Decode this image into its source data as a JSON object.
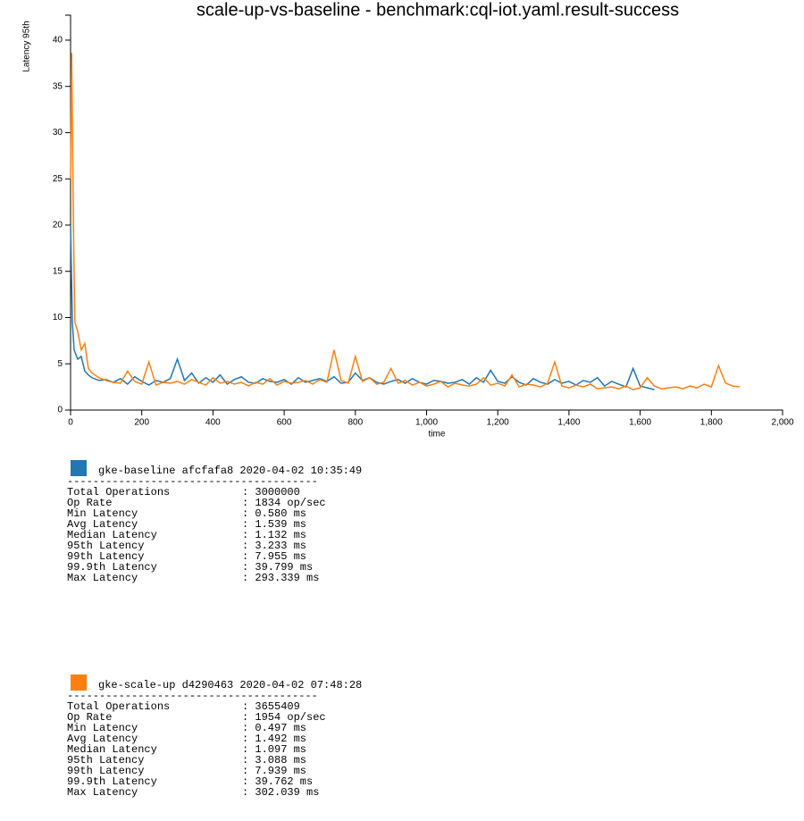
{
  "chart_data": {
    "type": "line",
    "title": "scale-up-vs-baseline - benchmark:cql-iot.yaml.result-success",
    "x_label": "time",
    "y_label": "Latency 95th",
    "xlim": [
      0,
      2000
    ],
    "ylim": [
      0,
      42.7
    ],
    "xticks": [
      0,
      200,
      400,
      600,
      800,
      {
        "value": 1000,
        "label": "1,000"
      },
      {
        "value": 1200,
        "label": "1,200"
      },
      {
        "value": 1400,
        "label": "1,400"
      },
      {
        "value": 1600,
        "label": "1,600"
      },
      {
        "value": 1800,
        "label": "1,800"
      },
      {
        "value": 2000,
        "label": "2,000"
      }
    ],
    "yticks": [
      0,
      5,
      10,
      15,
      20,
      25,
      30,
      35,
      40
    ],
    "grid": false,
    "series": [
      {
        "name": "gke-baseline afcfafa8 2020-04-02 10:35:49",
        "color": "#1f77b4",
        "x": [
          0,
          5,
          10,
          20,
          30,
          40,
          50,
          60,
          80,
          100,
          120,
          140,
          160,
          180,
          200,
          220,
          240,
          260,
          280,
          300,
          320,
          340,
          360,
          380,
          400,
          420,
          440,
          460,
          480,
          500,
          520,
          540,
          560,
          580,
          600,
          620,
          640,
          660,
          680,
          700,
          720,
          740,
          760,
          780,
          800,
          820,
          840,
          860,
          880,
          900,
          920,
          940,
          960,
          980,
          1000,
          1020,
          1040,
          1060,
          1080,
          1100,
          1120,
          1140,
          1160,
          1180,
          1200,
          1220,
          1240,
          1260,
          1280,
          1300,
          1320,
          1340,
          1360,
          1380,
          1400,
          1420,
          1440,
          1460,
          1480,
          1500,
          1520,
          1540,
          1560,
          1580,
          1600,
          1620,
          1640
        ],
        "values": [
          20,
          9.5,
          6.5,
          5.5,
          5.8,
          4.2,
          3.8,
          3.5,
          3.2,
          3.3,
          3.0,
          3.4,
          2.8,
          3.6,
          3.1,
          2.7,
          3.2,
          3.0,
          3.4,
          5.5,
          3.2,
          4.0,
          2.9,
          3.5,
          3.0,
          3.8,
          2.8,
          3.3,
          3.6,
          3.0,
          2.9,
          3.4,
          3.1,
          3.0,
          3.3,
          2.8,
          3.5,
          3.0,
          3.2,
          3.4,
          3.1,
          3.6,
          2.9,
          3.0,
          4.0,
          3.2,
          3.5,
          3.0,
          2.8,
          3.1,
          3.3,
          2.9,
          3.4,
          3.0,
          2.8,
          3.2,
          3.1,
          2.9,
          3.0,
          3.3,
          2.8,
          3.5,
          3.0,
          4.3,
          3.1,
          2.9,
          3.6,
          3.0,
          2.7,
          3.4,
          3.0,
          2.8,
          3.3,
          2.9,
          3.1,
          2.7,
          3.2,
          3.0,
          3.5,
          2.6,
          3.1,
          2.8,
          2.5,
          4.5,
          2.6,
          2.4,
          2.2
        ]
      },
      {
        "name": "gke-scale-up d4290463 2020-04-02 07:48:28",
        "color": "#ff7f0e",
        "x": [
          0,
          3,
          8,
          12,
          20,
          30,
          40,
          50,
          60,
          80,
          100,
          120,
          140,
          160,
          180,
          200,
          220,
          240,
          260,
          280,
          300,
          320,
          340,
          360,
          380,
          400,
          420,
          440,
          460,
          480,
          500,
          520,
          540,
          560,
          580,
          600,
          620,
          640,
          660,
          680,
          700,
          720,
          740,
          760,
          780,
          800,
          820,
          840,
          860,
          880,
          900,
          920,
          940,
          960,
          980,
          1000,
          1020,
          1040,
          1060,
          1080,
          1100,
          1120,
          1140,
          1160,
          1180,
          1200,
          1220,
          1240,
          1260,
          1280,
          1300,
          1320,
          1340,
          1360,
          1380,
          1400,
          1420,
          1440,
          1460,
          1480,
          1500,
          1520,
          1540,
          1560,
          1580,
          1600,
          1620,
          1640,
          1660,
          1680,
          1700,
          1720,
          1740,
          1760,
          1780,
          1800,
          1820,
          1840,
          1860,
          1880
        ],
        "values": [
          25,
          38.6,
          20,
          9.5,
          8.5,
          6.5,
          7.2,
          4.5,
          4,
          3.5,
          3.2,
          3.0,
          2.9,
          4.2,
          3.1,
          2.8,
          5.2,
          2.7,
          3.0,
          2.9,
          3.1,
          2.8,
          3.3,
          3.0,
          2.7,
          3.5,
          2.9,
          3.1,
          2.8,
          3.0,
          2.6,
          3.0,
          2.8,
          3.4,
          2.7,
          3.1,
          2.9,
          3.0,
          3.2,
          2.8,
          3.3,
          3.0,
          6.5,
          3.2,
          2.9,
          5.8,
          3.1,
          3.5,
          2.8,
          3.0,
          4.5,
          2.9,
          3.2,
          2.7,
          3.0,
          2.6,
          2.8,
          3.1,
          2.5,
          2.9,
          2.7,
          2.6,
          2.8,
          3.5,
          2.7,
          2.9,
          2.6,
          3.8,
          2.5,
          2.8,
          2.7,
          2.5,
          2.9,
          5.2,
          2.6,
          2.4,
          2.7,
          2.5,
          2.8,
          2.3,
          2.4,
          2.5,
          2.3,
          2.6,
          2.2,
          2.4,
          3.5,
          2.6,
          2.3,
          2.4,
          2.5,
          2.3,
          2.6,
          2.4,
          2.8,
          2.5,
          4.8,
          2.9,
          2.6,
          2.5
        ]
      }
    ]
  },
  "summaries": [
    {
      "separator": "---------------------------------------",
      "rows": [
        {
          "label": "Total Operations",
          "value": ": 3000000"
        },
        {
          "label": "Op Rate",
          "value": ": 1834 op/sec"
        },
        {
          "label": "Min Latency",
          "value": ": 0.580 ms"
        },
        {
          "label": "Avg Latency",
          "value": ": 1.539 ms"
        },
        {
          "label": "Median Latency",
          "value": ": 1.132 ms"
        },
        {
          "label": "95th Latency",
          "value": ": 3.233 ms"
        },
        {
          "label": "99th Latency",
          "value": ": 7.955 ms"
        },
        {
          "label": "99.9th Latency",
          "value": ": 39.799 ms"
        },
        {
          "label": "Max Latency",
          "value": ": 293.339 ms"
        }
      ]
    },
    {
      "separator": "---------------------------------------",
      "rows": [
        {
          "label": "Total Operations",
          "value": ": 3655409"
        },
        {
          "label": "Op Rate",
          "value": ": 1954 op/sec"
        },
        {
          "label": "Min Latency",
          "value": ": 0.497 ms"
        },
        {
          "label": "Avg Latency",
          "value": ": 1.492 ms"
        },
        {
          "label": "Median Latency",
          "value": ": 1.097 ms"
        },
        {
          "label": "95th Latency",
          "value": ": 3.088 ms"
        },
        {
          "label": "99th Latency",
          "value": ": 7.939 ms"
        },
        {
          "label": "99.9th Latency",
          "value": ": 39.762 ms"
        },
        {
          "label": "Max Latency",
          "value": ": 302.039 ms"
        }
      ]
    }
  ]
}
